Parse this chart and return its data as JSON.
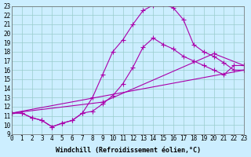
{
  "bg_color": "#cceeff",
  "line_color": "#aa00aa",
  "grid_color": "#99cccc",
  "xlim": [
    0,
    23
  ],
  "ylim": [
    9,
    23
  ],
  "xticks": [
    0,
    1,
    2,
    3,
    4,
    5,
    6,
    7,
    8,
    9,
    10,
    11,
    12,
    13,
    14,
    15,
    16,
    17,
    18,
    19,
    20,
    21,
    22,
    23
  ],
  "yticks": [
    9,
    10,
    11,
    12,
    13,
    14,
    15,
    16,
    17,
    18,
    19,
    20,
    21,
    22,
    23
  ],
  "curve_big_x": [
    0,
    1,
    2,
    3,
    4,
    5,
    6,
    7,
    8,
    9,
    10,
    11,
    12,
    13,
    14,
    15,
    16,
    17,
    18,
    19,
    20,
    21,
    22,
    23
  ],
  "curve_big_y": [
    11.3,
    11.3,
    10.8,
    10.5,
    9.8,
    10.2,
    10.5,
    11.3,
    13.0,
    15.5,
    18.0,
    19.3,
    21.0,
    22.5,
    23.1,
    23.2,
    22.8,
    21.5,
    18.8,
    18.0,
    17.5,
    16.8,
    16.0,
    16.0
  ],
  "curve_mid_x": [
    0,
    1,
    2,
    3,
    4,
    5,
    6,
    7,
    8,
    9,
    10,
    11,
    12,
    13,
    14,
    15,
    16,
    17,
    18,
    19,
    20,
    21,
    22,
    23
  ],
  "curve_mid_y": [
    11.3,
    11.3,
    10.8,
    10.5,
    9.8,
    10.2,
    10.5,
    11.3,
    11.5,
    12.3,
    13.2,
    14.5,
    16.3,
    18.5,
    19.5,
    18.8,
    18.3,
    17.5,
    17.0,
    16.5,
    16.0,
    15.5,
    16.5,
    16.5
  ],
  "curve_line1_x": [
    0,
    23
  ],
  "curve_line1_y": [
    11.3,
    16.0
  ],
  "curve_line2_x": [
    0,
    9,
    20,
    23
  ],
  "curve_line2_y": [
    11.3,
    12.5,
    17.8,
    16.5
  ],
  "marker": "+",
  "markersize": 4,
  "linewidth": 0.8,
  "tick_fontsize": 5.5,
  "label_fontsize": 6.0
}
